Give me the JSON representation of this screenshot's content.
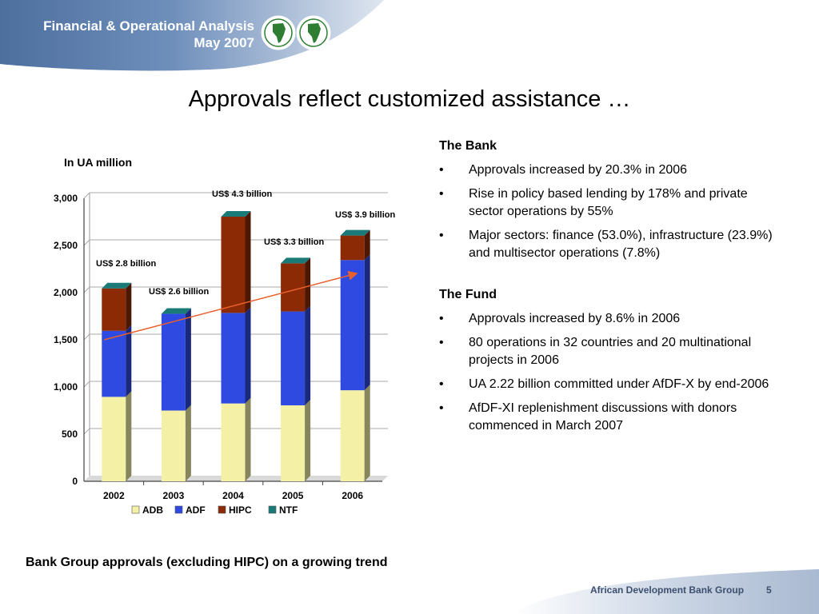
{
  "header": {
    "title_line1": "Financial & Operational Analysis",
    "title_line2": "May 2007"
  },
  "slide": {
    "title": "Approvals reflect customized assistance …",
    "footnote": "Bank Group approvals (excluding HIPC) on a growing trend"
  },
  "chart_data": {
    "type": "bar",
    "stacked": true,
    "unit_label": "In UA million",
    "categories": [
      "2002",
      "2003",
      "2004",
      "2005",
      "2006"
    ],
    "series": [
      {
        "name": "ADB",
        "color": "#f4f1a6",
        "values": [
          895,
          750,
          825,
          805,
          965
        ]
      },
      {
        "name": "ADF",
        "color": "#2f4ae0",
        "values": [
          700,
          1025,
          960,
          995,
          1380
        ]
      },
      {
        "name": "HIPC",
        "color": "#8b2a05",
        "values": [
          450,
          0,
          1020,
          510,
          260
        ]
      },
      {
        "name": "NTF",
        "color": "#1a7a78",
        "values": [
          0,
          0,
          0,
          0,
          0
        ]
      }
    ],
    "ylim": [
      0,
      3000
    ],
    "yticks": [
      "0",
      "500",
      "1,000",
      "1,500",
      "2,000",
      "2,500",
      "3,000"
    ],
    "grid": true,
    "legend_position": "bottom",
    "annotations": [
      {
        "text": "US$ 2.8 billion",
        "category": "2002"
      },
      {
        "text": "US$ 2.6 billion",
        "category": "2003"
      },
      {
        "text": "US$ 4.3 billion",
        "category": "2004"
      },
      {
        "text": "US$ 3.3 billion",
        "category": "2005"
      },
      {
        "text": "US$ 3.9  billion",
        "category": "2006"
      }
    ],
    "trend_line": {
      "from": [
        "2002",
        1500
      ],
      "to": [
        "2006",
        2200
      ],
      "color": "#e8602c"
    }
  },
  "bank": {
    "heading": "The Bank",
    "bullets": [
      "Approvals increased by 20.3% in 2006",
      "Rise in policy based lending by 178% and private sector operations by 55%",
      "Major sectors: finance (53.0%), infrastructure (23.9%) and multisector operations (7.8%)"
    ]
  },
  "fund": {
    "heading": "The Fund",
    "bullets": [
      "Approvals increased by 8.6% in 2006",
      "80 operations in 32 countries and 20 multinational projects in 2006",
      "UA 2.22 billion committed under AfDF-X by end-2006",
      "AfDF-XI replenishment discussions with donors commenced in March 2007"
    ]
  },
  "bullet_char": "•",
  "footer": {
    "org": "African Development Bank Group",
    "page": "5"
  }
}
